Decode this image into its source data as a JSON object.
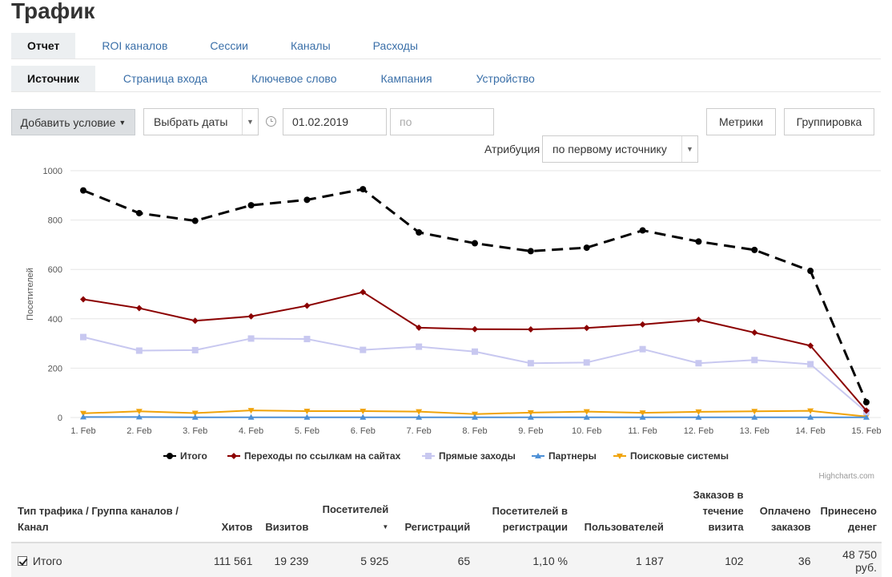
{
  "page": {
    "title": "Трафик"
  },
  "tabs_primary": [
    "Отчет",
    "ROI каналов",
    "Сессии",
    "Каналы",
    "Расходы"
  ],
  "tabs_secondary": [
    "Источник",
    "Страница входа",
    "Ключевое слово",
    "Кампания",
    "Устройство"
  ],
  "toolbar": {
    "add_condition": "Добавить условие",
    "date_select": "Выбрать даты",
    "date_from": "01.02.2019",
    "date_to_placeholder": "по",
    "metrics": "Метрики",
    "grouping": "Группировка",
    "attribution_label": "Атрибуция",
    "attribution_value": "по первому источнику"
  },
  "chart_data": {
    "type": "line",
    "ylabel": "Посетителей",
    "ylim": [
      0,
      1000
    ],
    "yticks": [
      0,
      200,
      400,
      600,
      800,
      1000
    ],
    "categories": [
      "1. Feb",
      "2. Feb",
      "3. Feb",
      "4. Feb",
      "5. Feb",
      "6. Feb",
      "7. Feb",
      "8. Feb",
      "9. Feb",
      "10. Feb",
      "11. Feb",
      "12. Feb",
      "13. Feb",
      "14. Feb",
      "15. Feb"
    ],
    "grid": true,
    "legend": "bottom",
    "series": [
      {
        "name": "Итого",
        "color": "#000000",
        "marker": "circle",
        "dash": true,
        "values": [
          920,
          828,
          797,
          860,
          882,
          925,
          750,
          706,
          674,
          688,
          758,
          713,
          679,
          594,
          62
        ]
      },
      {
        "name": "Переходы по ссылкам на сайтах",
        "color": "#8b0000",
        "marker": "diamond",
        "dash": false,
        "values": [
          479,
          443,
          392,
          410,
          453,
          508,
          364,
          358,
          357,
          363,
          377,
          396,
          344,
          291,
          28
        ]
      },
      {
        "name": "Прямые заходы",
        "color": "#c8c8f0",
        "marker": "square",
        "dash": false,
        "values": [
          326,
          271,
          273,
          320,
          318,
          274,
          287,
          267,
          220,
          223,
          277,
          220,
          233,
          216,
          22
        ]
      },
      {
        "name": "Партнеры",
        "color": "#4d90d6",
        "marker": "triangle",
        "dash": false,
        "values": [
          2,
          2,
          1,
          1,
          1,
          1,
          1,
          1,
          1,
          1,
          1,
          1,
          1,
          1,
          1
        ]
      },
      {
        "name": "Поисковые системы",
        "color": "#f0a30a",
        "marker": "triangle-down",
        "dash": false,
        "values": [
          17,
          25,
          18,
          29,
          26,
          26,
          24,
          14,
          20,
          24,
          19,
          23,
          25,
          27,
          4
        ]
      }
    ]
  },
  "credit": "Highcharts.com",
  "table": {
    "headers": {
      "channel": "Тип трафика / Группа каналов / Канал",
      "hits": "Хитов",
      "visits": "Визитов",
      "visitors": "Посетителей",
      "registrations": "Регистраций",
      "reg_visitors": "Посетителей в регистрации",
      "users": "Пользователей",
      "orders": "Заказов в течение визита",
      "paid": "Оплачено заказов",
      "revenue": "Принесено денег"
    },
    "rows": [
      {
        "channel": "Итого",
        "hits": "111 561",
        "visits": "19 239",
        "visitors": "5 925",
        "registrations": "65",
        "reg_visitors": "1,10 %",
        "users": "1 187",
        "orders": "102",
        "paid": "36",
        "revenue": "48 750 руб."
      }
    ]
  }
}
